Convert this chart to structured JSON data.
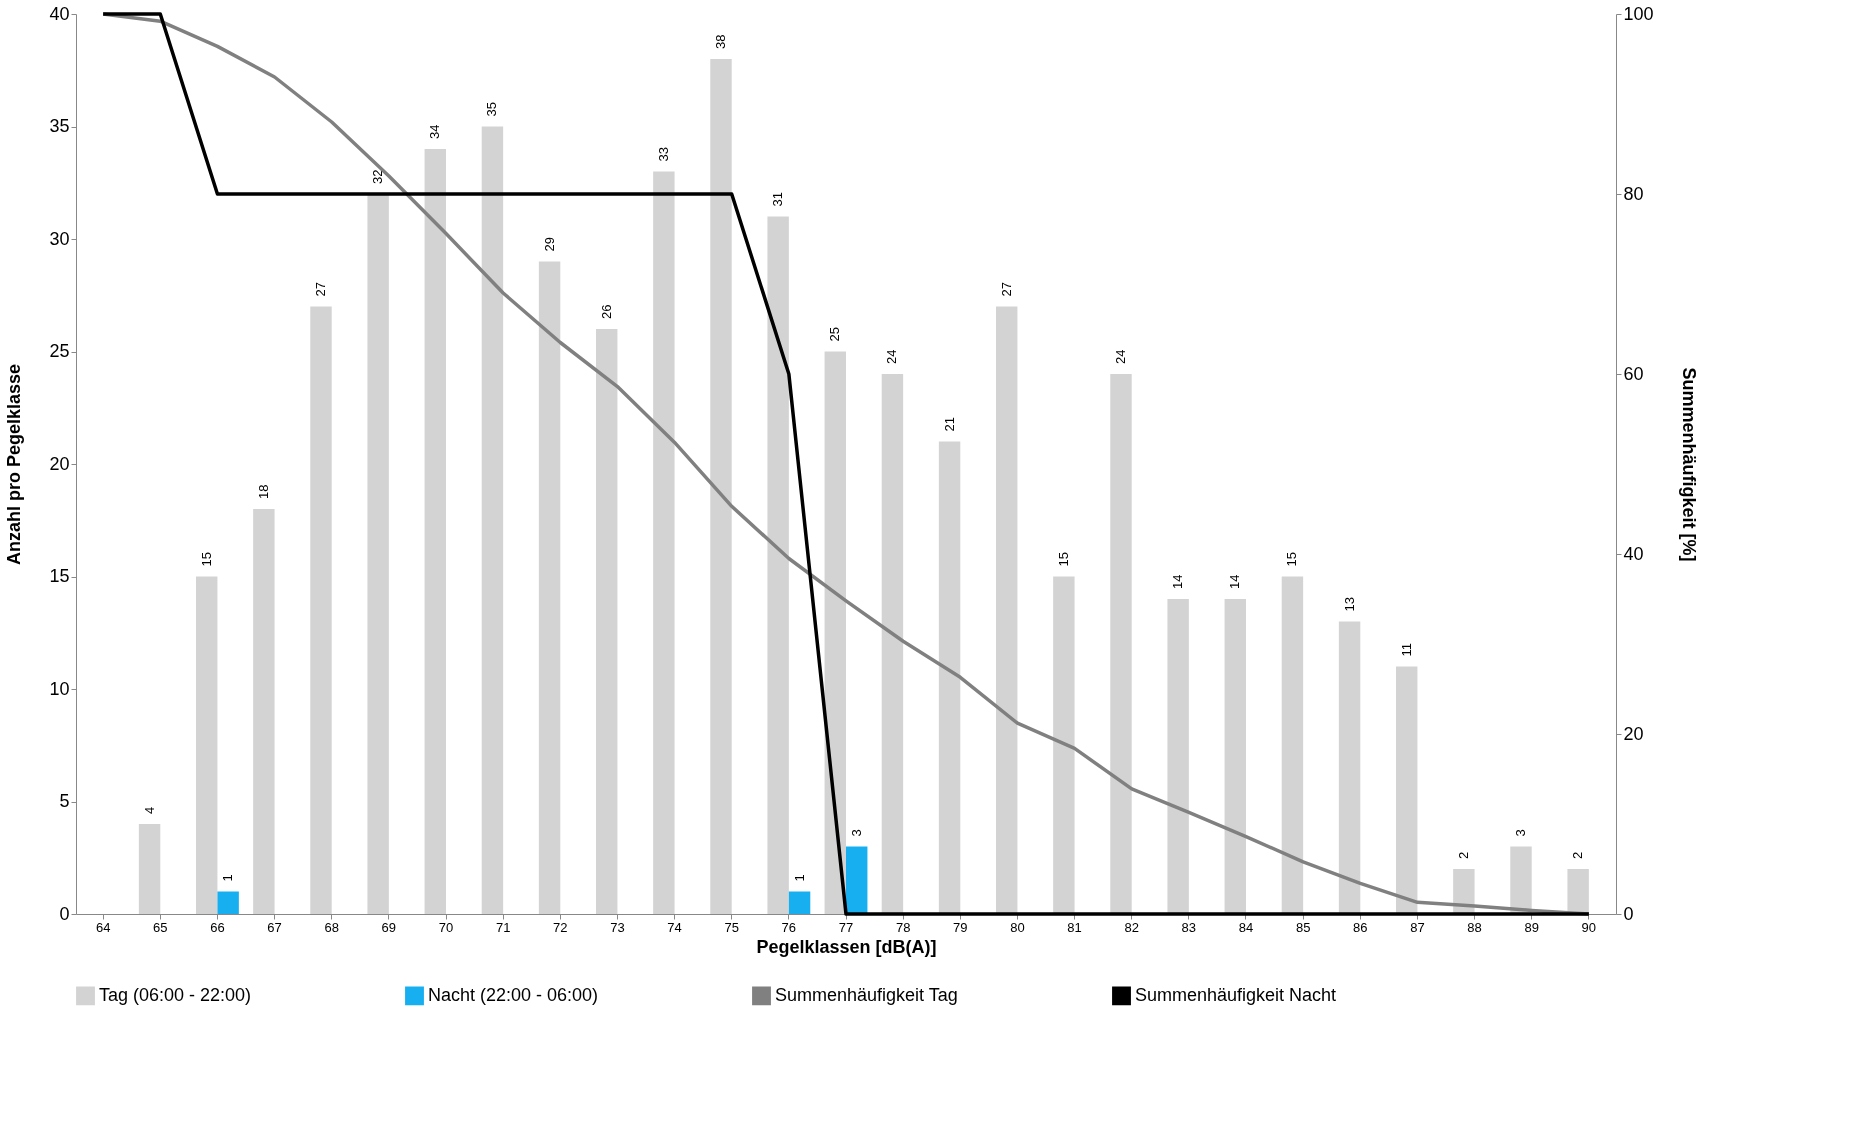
{
  "chart_data": {
    "type": "bar",
    "xlabel": "Pegelklassen [dB(A)]",
    "ylabel": "Anzahl pro Pegelklasse",
    "y2label": "Summenhäufigkeit [%]",
    "categories": [
      "64",
      "65",
      "66",
      "67",
      "68",
      "69",
      "70",
      "71",
      "72",
      "73",
      "74",
      "75",
      "76",
      "77",
      "78",
      "79",
      "80",
      "81",
      "82",
      "83",
      "84",
      "85",
      "86",
      "87",
      "88",
      "89",
      "90"
    ],
    "series": [
      {
        "name": "Tag (06:00 - 22:00)",
        "color": "#d3d3d3",
        "values": [
          0,
          4,
          15,
          18,
          27,
          32,
          34,
          35,
          29,
          26,
          33,
          38,
          31,
          25,
          24,
          21,
          27,
          15,
          24,
          14,
          14,
          15,
          13,
          11,
          2,
          3,
          2
        ],
        "value_labels": [
          null,
          "4",
          "15",
          "18",
          "27",
          "32",
          "34",
          "35",
          "29",
          "26",
          "33",
          "38",
          "31",
          "25",
          "24",
          "21",
          "27",
          "15",
          "24",
          "14",
          "14",
          "15",
          "13",
          "11",
          "2",
          "3",
          "2"
        ]
      },
      {
        "name": "Nacht (22:00 - 06:00)",
        "color": "#17aff0",
        "values": [
          0,
          0,
          1,
          0,
          0,
          0,
          0,
          0,
          0,
          0,
          0,
          0,
          1,
          3,
          0,
          0,
          0,
          0,
          0,
          0,
          0,
          0,
          0,
          0,
          0,
          0,
          0
        ],
        "value_labels": [
          null,
          null,
          "1",
          null,
          null,
          null,
          null,
          null,
          null,
          null,
          null,
          null,
          "1",
          "3",
          null,
          null,
          null,
          null,
          null,
          null,
          null,
          null,
          null,
          null,
          null,
          null,
          null
        ]
      },
      {
        "name": "Summenhäufigkeit Tag",
        "type": "line",
        "axis": "y2",
        "color": "#808080",
        "values": [
          100,
          99.2,
          96.4,
          93.0,
          88.0,
          82.0,
          75.6,
          69.0,
          63.5,
          58.6,
          52.4,
          45.3,
          39.5,
          34.8,
          30.3,
          26.3,
          21.2,
          18.4,
          13.9,
          11.3,
          8.6,
          5.8,
          3.4,
          1.3,
          0.9,
          0.4,
          0
        ]
      },
      {
        "name": "Summenhäufigkeit Nacht",
        "type": "line",
        "axis": "y2",
        "color": "#000000",
        "values": [
          100,
          100,
          80,
          80,
          80,
          80,
          80,
          80,
          80,
          80,
          80,
          80,
          60,
          0,
          0,
          0,
          0,
          0,
          0,
          0,
          0,
          0,
          0,
          0,
          0,
          0,
          0
        ]
      }
    ],
    "ylim": [
      0,
      40
    ],
    "yticks": [
      0,
      5,
      10,
      15,
      20,
      25,
      30,
      35,
      40
    ],
    "y2lim": [
      0,
      100
    ],
    "y2ticks": [
      0,
      20,
      40,
      60,
      80,
      100
    ],
    "grid": false,
    "legend": "bottom",
    "line_style": "solid"
  }
}
